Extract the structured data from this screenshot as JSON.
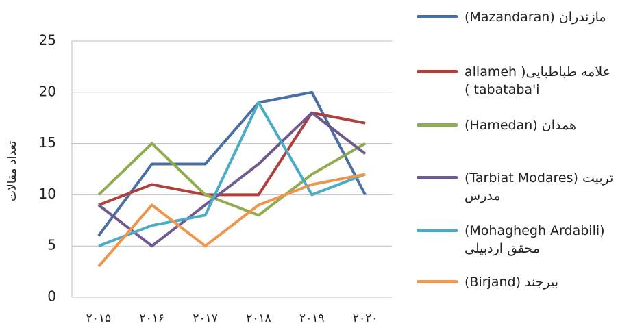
{
  "chart_data": {
    "type": "line",
    "ylabel": "تعداد مقالات",
    "categories": [
      "۲۰۱۵",
      "۲۰۱۶",
      "۲۰۱۷",
      "۲۰۱۸",
      "۲۰۱۹",
      "۲۰۲۰"
    ],
    "series": [
      {
        "name": "مازندران (Mazandaran)",
        "color": "#4a6fa5",
        "values": [
          6,
          13,
          13,
          19,
          20,
          10
        ]
      },
      {
        "name": "علامه طباطبایی( allameh tabataba'i )",
        "color": "#b0403d",
        "values": [
          9,
          11,
          10,
          10,
          18,
          17
        ]
      },
      {
        "name": "همدان (Hamedan)",
        "color": "#8fad4f",
        "values": [
          10,
          15,
          10,
          8,
          12,
          15
        ]
      },
      {
        "name": "(Tarbiat Modares) تربیت مدرس",
        "color": "#6f5a8f",
        "values": [
          9,
          5,
          9,
          13,
          18,
          14
        ]
      },
      {
        "name": "(Mohaghegh Ardabili) محقق اردبیلی",
        "color": "#4bacc6",
        "values": [
          5,
          7,
          8,
          19,
          10,
          12
        ]
      },
      {
        "name": "بیرجند (Birjand)",
        "color": "#f0964a",
        "values": [
          3,
          9,
          5,
          9,
          11,
          12
        ]
      }
    ],
    "ylim": [
      0,
      25
    ],
    "yticks": [
      0,
      5,
      10,
      15,
      20,
      25
    ],
    "grid": true,
    "legend": "right"
  }
}
